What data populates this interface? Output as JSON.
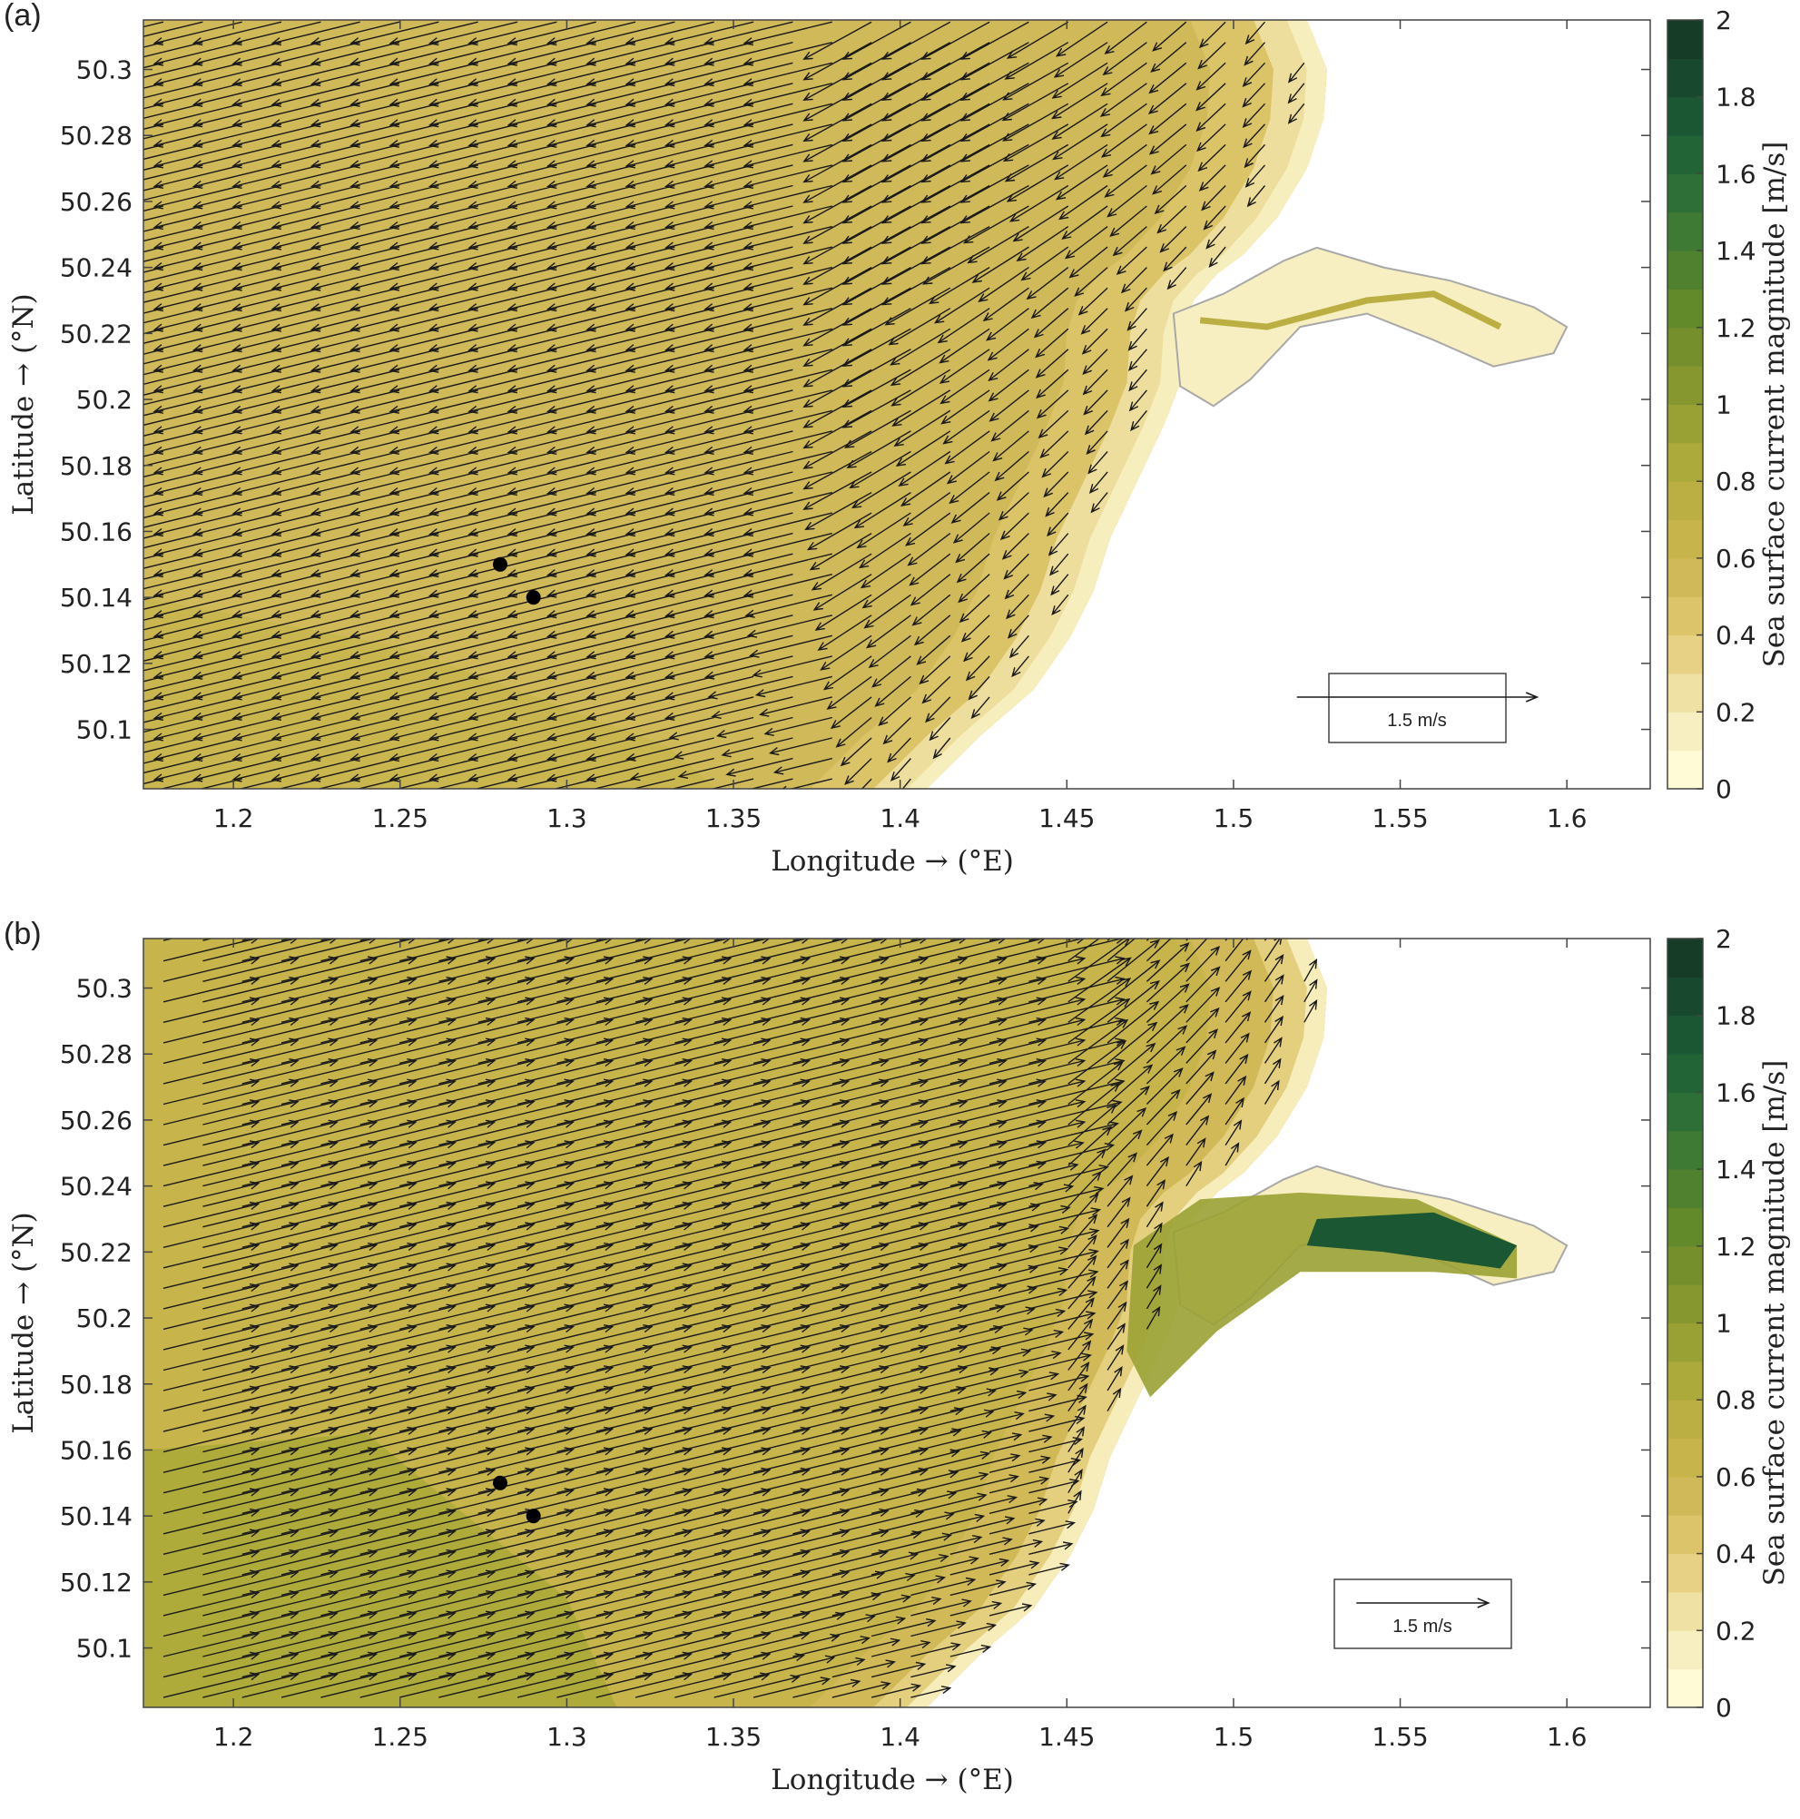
{
  "chart_data": [
    {
      "type": "heatmap",
      "panel_label": "(a)",
      "xlabel": "Longitude → (°E)",
      "ylabel": "Latitude → (°N)",
      "colorbar_label": "Sea surface current magnitude [m/s]",
      "xlim": [
        1.173,
        1.625
      ],
      "ylim": [
        50.082,
        50.315
      ],
      "x_ticks": [
        1.2,
        1.25,
        1.3,
        1.35,
        1.4,
        1.45,
        1.5,
        1.55,
        1.6
      ],
      "y_ticks": [
        50.1,
        50.12,
        50.14,
        50.16,
        50.18,
        50.2,
        50.22,
        50.24,
        50.26,
        50.28,
        50.3
      ],
      "x_tick_labels": [
        "1.2",
        "1.25",
        "1.3",
        "1.35",
        "1.4",
        "1.45",
        "1.5",
        "1.55",
        "1.6"
      ],
      "y_tick_labels": [
        "50.1",
        "50.12",
        "50.14",
        "50.16",
        "50.18",
        "50.2",
        "50.22",
        "50.24",
        "50.26",
        "50.28",
        "50.3"
      ],
      "colorbar_range": [
        0,
        2
      ],
      "colorbar_ticks": [
        0,
        0.2,
        0.4,
        0.6,
        0.8,
        1,
        1.2,
        1.4,
        1.6,
        1.8,
        2
      ],
      "colorbar_tick_labels": [
        "0",
        "0.2",
        "0.4",
        "0.6",
        "0.8",
        "1",
        "1.2",
        "1.4",
        "1.6",
        "1.8",
        "2"
      ],
      "colors": [
        "#fefbd6",
        "#f7efc1",
        "#efe1a3",
        "#e6d184",
        "#dbc46a",
        "#d0b958",
        "#c7b54c",
        "#bbae42",
        "#acaa3a",
        "#9aa134",
        "#87972f",
        "#758f2c",
        "#628a2b",
        "#4f812f",
        "#3f7a35",
        "#2e6f37",
        "#226436",
        "#1b5733",
        "#18482d",
        "#163b27"
      ],
      "current_direction": "south-west (ebb)",
      "typical_speed": 0.6,
      "reference_arrow": {
        "label": "1.5 m/s",
        "speed": 1.5
      },
      "points": [
        {
          "x": 1.28,
          "y": 50.15
        },
        {
          "x": 1.29,
          "y": 50.14
        }
      ]
    },
    {
      "type": "heatmap",
      "panel_label": "(b)",
      "xlabel": "Longitude → (°E)",
      "ylabel": "Latitude → (°N)",
      "colorbar_label": "Sea surface current magnitude [m/s]",
      "xlim": [
        1.173,
        1.625
      ],
      "ylim": [
        50.082,
        50.315
      ],
      "x_ticks": [
        1.2,
        1.25,
        1.3,
        1.35,
        1.4,
        1.45,
        1.5,
        1.55,
        1.6
      ],
      "y_ticks": [
        50.1,
        50.12,
        50.14,
        50.16,
        50.18,
        50.2,
        50.22,
        50.24,
        50.26,
        50.28,
        50.3
      ],
      "x_tick_labels": [
        "1.2",
        "1.25",
        "1.3",
        "1.35",
        "1.4",
        "1.45",
        "1.5",
        "1.55",
        "1.6"
      ],
      "y_tick_labels": [
        "50.1",
        "50.12",
        "50.14",
        "50.16",
        "50.18",
        "50.2",
        "50.22",
        "50.24",
        "50.26",
        "50.28",
        "50.3"
      ],
      "colorbar_range": [
        0,
        2
      ],
      "colorbar_ticks": [
        0,
        0.2,
        0.4,
        0.6,
        0.8,
        1,
        1.2,
        1.4,
        1.6,
        1.8,
        2
      ],
      "colorbar_tick_labels": [
        "0",
        "0.2",
        "0.4",
        "0.6",
        "0.8",
        "1",
        "1.2",
        "1.4",
        "1.6",
        "1.8",
        "2"
      ],
      "colors": [
        "#fefbd6",
        "#f7efc1",
        "#efe1a3",
        "#e6d184",
        "#dbc46a",
        "#d0b958",
        "#c7b54c",
        "#bbae42",
        "#acaa3a",
        "#9aa134",
        "#87972f",
        "#758f2c",
        "#628a2b",
        "#4f812f",
        "#3f7a35",
        "#2e6f37",
        "#226436",
        "#1b5733",
        "#18482d",
        "#163b27"
      ],
      "current_direction": "north-east (flood)",
      "typical_speed": 0.65,
      "reference_arrow": {
        "label": "1.5 m/s",
        "speed": 1.5
      },
      "points": [
        {
          "x": 1.28,
          "y": 50.15
        },
        {
          "x": 1.29,
          "y": 50.14
        }
      ]
    }
  ]
}
